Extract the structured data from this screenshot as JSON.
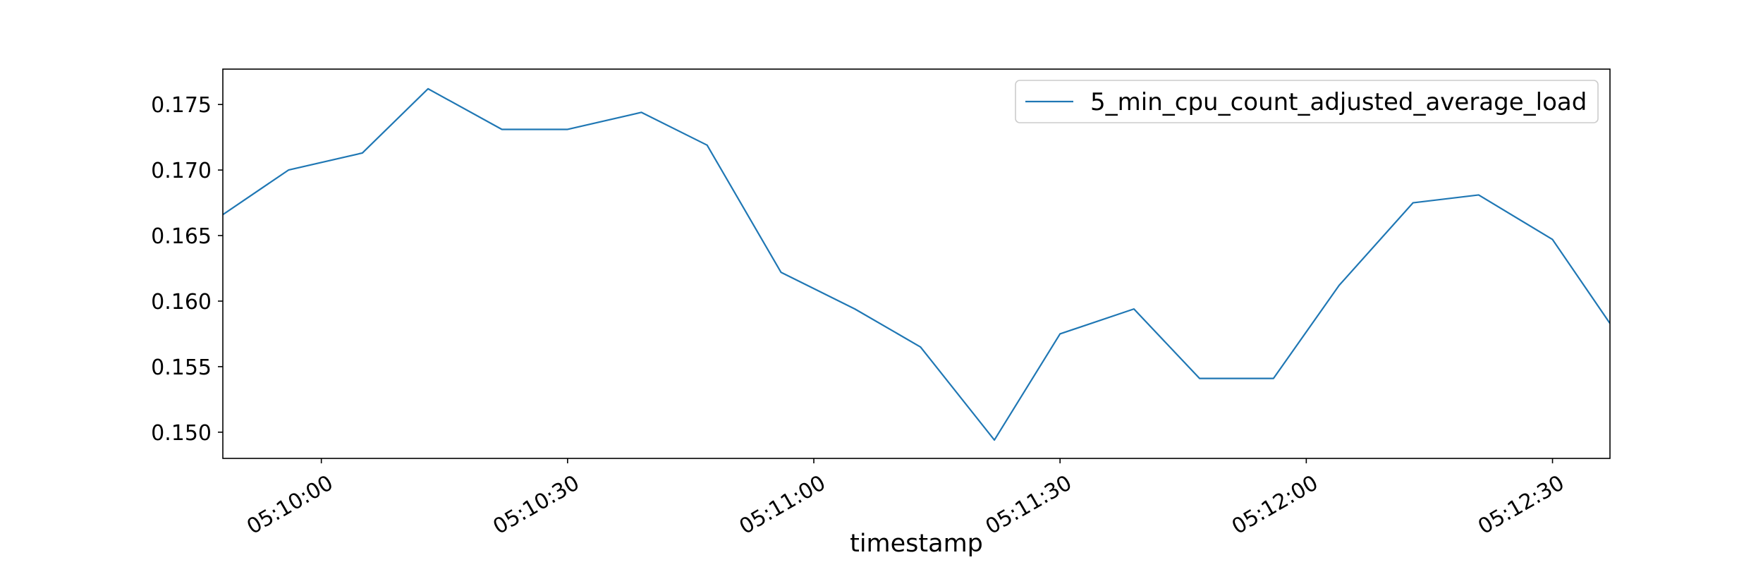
{
  "chart_data": {
    "type": "line",
    "title": "",
    "xlabel": "timestamp",
    "ylabel": "",
    "x_ticks": [
      "05:10:00",
      "05:10:30",
      "05:11:00",
      "05:11:30",
      "05:12:00",
      "05:12:30"
    ],
    "y_ticks": [
      "0.150",
      "0.155",
      "0.160",
      "0.165",
      "0.170",
      "0.175"
    ],
    "xlim": [
      "05:09:48",
      "05:12:37"
    ],
    "ylim": [
      0.148,
      0.1777
    ],
    "grid": false,
    "legend_position": "upper right",
    "series": [
      {
        "name": "5_min_cpu_count_adjusted_average_load",
        "color": "#1f77b4",
        "x": [
          "05:09:48",
          "05:09:56",
          "05:10:05",
          "05:10:13",
          "05:10:22",
          "05:10:30",
          "05:10:39",
          "05:10:47",
          "05:10:56",
          "05:11:05",
          "05:11:13",
          "05:11:22",
          "05:11:30",
          "05:11:39",
          "05:11:47",
          "05:11:56",
          "05:12:04",
          "05:12:13",
          "05:12:21",
          "05:12:30",
          "05:12:37"
        ],
        "y": [
          0.1666,
          0.17,
          0.1713,
          0.1762,
          0.1731,
          0.1731,
          0.1744,
          0.1719,
          0.1622,
          0.1594,
          0.1565,
          0.1494,
          0.1575,
          0.1594,
          0.1541,
          0.1541,
          0.1612,
          0.1675,
          0.1681,
          0.1647,
          0.1583
        ]
      }
    ]
  }
}
